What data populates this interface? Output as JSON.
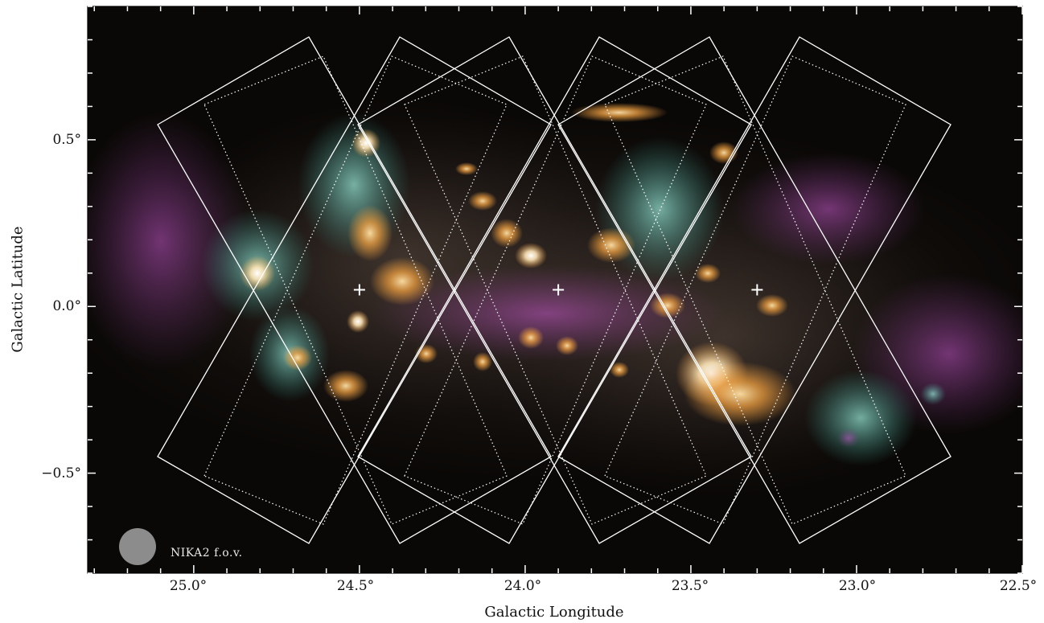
{
  "figure": {
    "xlabel": "Galactic Longitude",
    "ylabel": "Galactic Latitude",
    "x_ticks": [
      "25.0°",
      "24.5°",
      "24.0°",
      "23.5°",
      "23.0°",
      "22.5°"
    ],
    "y_ticks": [
      "0.5°",
      "0.0°",
      "−0.5°"
    ],
    "fov_label": "NIKA2 f.o.v.",
    "colors": {
      "background": "#0a0806",
      "dust_orange": "#f2a64a",
      "dust_cyan": "#6fd6c8",
      "dust_magenta": "#c457c9",
      "overlay": "#ffffff",
      "beam": "#8c8c8c"
    },
    "field_centers": [
      {
        "l": 24.5,
        "b": 0.05
      },
      {
        "l": 23.9,
        "b": 0.05
      },
      {
        "l": 23.3,
        "b": 0.05
      }
    ],
    "x_range": [
      25.32,
      22.5
    ],
    "y_range": [
      -0.8,
      0.9
    ]
  }
}
